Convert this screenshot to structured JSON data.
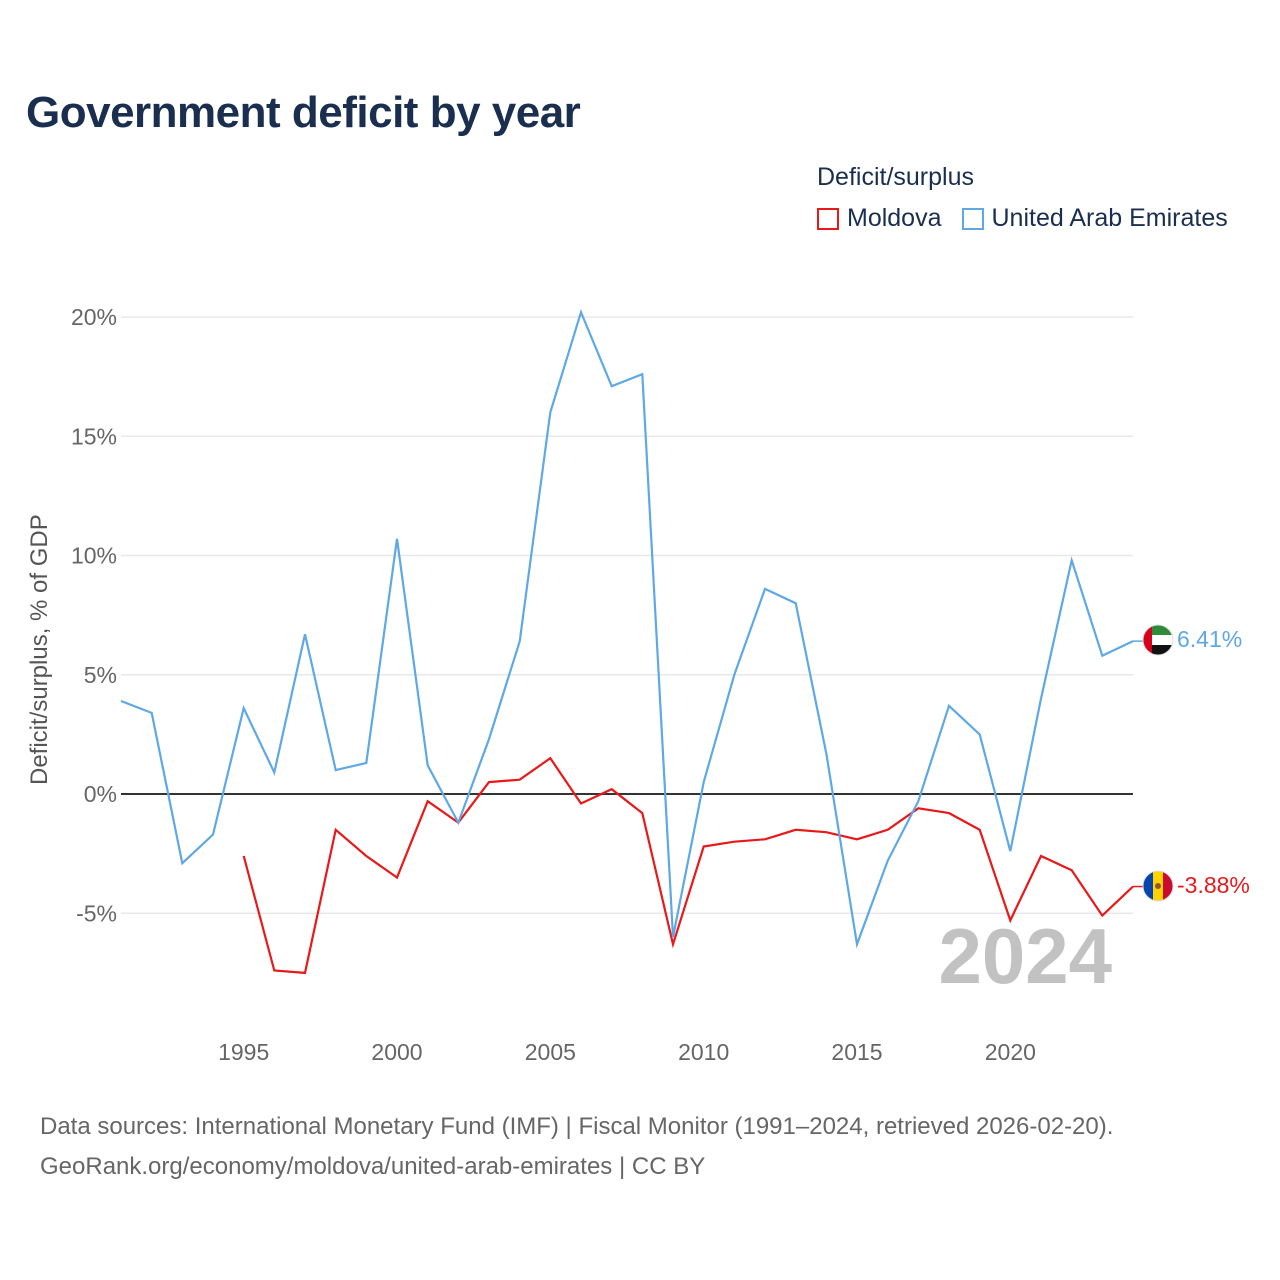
{
  "title": "Government deficit by year",
  "legend": {
    "title": "Deficit/surplus",
    "items": [
      {
        "label": "Moldova",
        "color": "#e8191b"
      },
      {
        "label": "United Arab Emirates",
        "color": "#5fa8e6"
      }
    ]
  },
  "year_watermark": "2024",
  "end_labels": {
    "uae": "6.41%",
    "moldova": "-3.88%"
  },
  "footer": {
    "line1": "Data sources: International Monetary Fund (IMF) | Fiscal Monitor (1991–2024, retrieved 2026-02-20).",
    "line2": "GeoRank.org/economy/moldova/united-arab-emirates | CC BY"
  },
  "chart_data": {
    "type": "line",
    "title": "Government deficit by year",
    "xlabel": "",
    "ylabel": "Deficit/surplus, % of GDP",
    "xlim": [
      1991,
      2024
    ],
    "ylim": [
      -9,
      21
    ],
    "xticks": [
      1995,
      2000,
      2005,
      2010,
      2015,
      2020
    ],
    "yticks": [
      -5,
      0,
      5,
      10,
      15,
      20
    ],
    "ytick_labels": [
      "-5%",
      "0%",
      "5%",
      "10%",
      "15%",
      "20%"
    ],
    "series": [
      {
        "name": "United Arab Emirates",
        "color": "#5fa8e6",
        "x": [
          1991,
          1992,
          1993,
          1994,
          1995,
          1996,
          1997,
          1998,
          1999,
          2000,
          2001,
          2002,
          2003,
          2004,
          2005,
          2006,
          2007,
          2008,
          2009,
          2010,
          2011,
          2012,
          2013,
          2014,
          2015,
          2016,
          2017,
          2018,
          2019,
          2020,
          2021,
          2022,
          2023,
          2024
        ],
        "values": [
          3.9,
          3.4,
          -2.9,
          -1.7,
          3.6,
          0.9,
          6.7,
          1.0,
          1.3,
          10.7,
          1.2,
          -1.2,
          2.3,
          6.4,
          16.0,
          20.2,
          17.1,
          17.6,
          -6.0,
          0.5,
          5.0,
          8.6,
          8.0,
          1.7,
          -6.3,
          -2.8,
          -0.3,
          3.7,
          2.5,
          -2.4,
          4.0,
          9.8,
          5.8,
          6.41
        ]
      },
      {
        "name": "Moldova",
        "color": "#e8191b",
        "x": [
          1995,
          1996,
          1997,
          1998,
          1999,
          2000,
          2001,
          2002,
          2003,
          2004,
          2005,
          2006,
          2007,
          2008,
          2009,
          2010,
          2011,
          2012,
          2013,
          2014,
          2015,
          2016,
          2017,
          2018,
          2019,
          2020,
          2021,
          2022,
          2023,
          2024
        ],
        "values": [
          -2.6,
          -7.4,
          -7.5,
          -1.5,
          -2.6,
          -3.5,
          -0.3,
          -1.2,
          0.5,
          0.6,
          1.5,
          -0.4,
          0.2,
          -0.8,
          -6.3,
          -2.2,
          -2.0,
          -1.9,
          -1.5,
          -1.6,
          -1.9,
          -1.5,
          -0.6,
          -0.8,
          -1.5,
          -5.3,
          -2.6,
          -3.2,
          -5.1,
          -3.88
        ]
      }
    ]
  }
}
